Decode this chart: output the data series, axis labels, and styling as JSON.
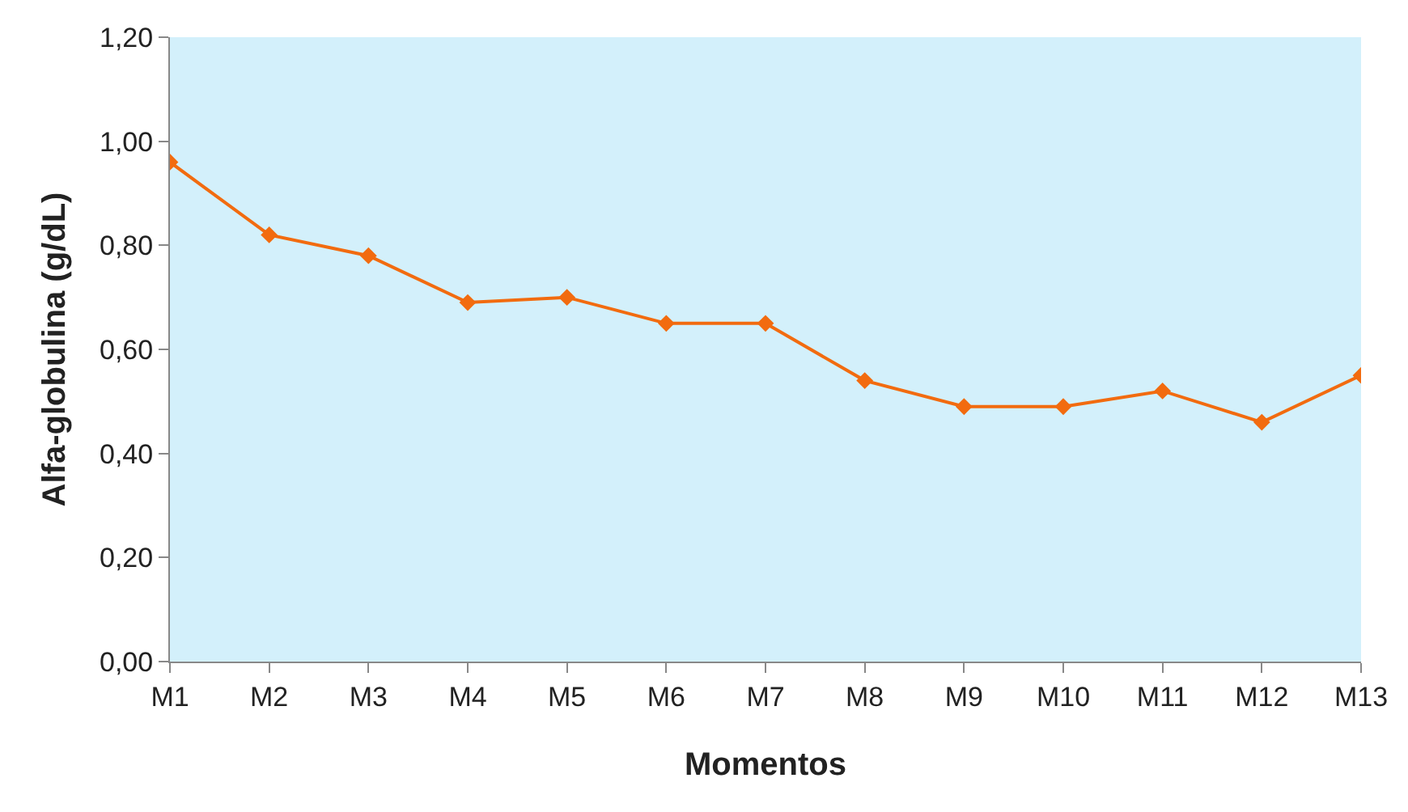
{
  "chart_data": {
    "type": "line",
    "xlabel": "Momentos",
    "ylabel": "Alfa-globulina (g/dL)",
    "categories": [
      "M1",
      "M2",
      "M3",
      "M4",
      "M5",
      "M6",
      "M7",
      "M8",
      "M9",
      "M10",
      "M11",
      "M12",
      "M13"
    ],
    "series": [
      {
        "color": "#f26b0f",
        "values": [
          0.96,
          0.82,
          0.78,
          0.69,
          0.7,
          0.65,
          0.65,
          0.54,
          0.49,
          0.49,
          0.52,
          0.46,
          0.55
        ]
      }
    ],
    "ylim": [
      0,
      1.2
    ],
    "yticks": [
      {
        "value": 0,
        "label": "0,00"
      },
      {
        "value": 0.2,
        "label": "0,20"
      },
      {
        "value": 0.4,
        "label": "0,40"
      },
      {
        "value": 0.6,
        "label": "0,60"
      },
      {
        "value": 0.8,
        "label": "0,80"
      },
      {
        "value": 1.0,
        "label": "1,00"
      },
      {
        "value": 1.2,
        "label": "1,20"
      }
    ],
    "grid": false,
    "legend": false,
    "marker": "diamond",
    "line_style": "solid"
  }
}
